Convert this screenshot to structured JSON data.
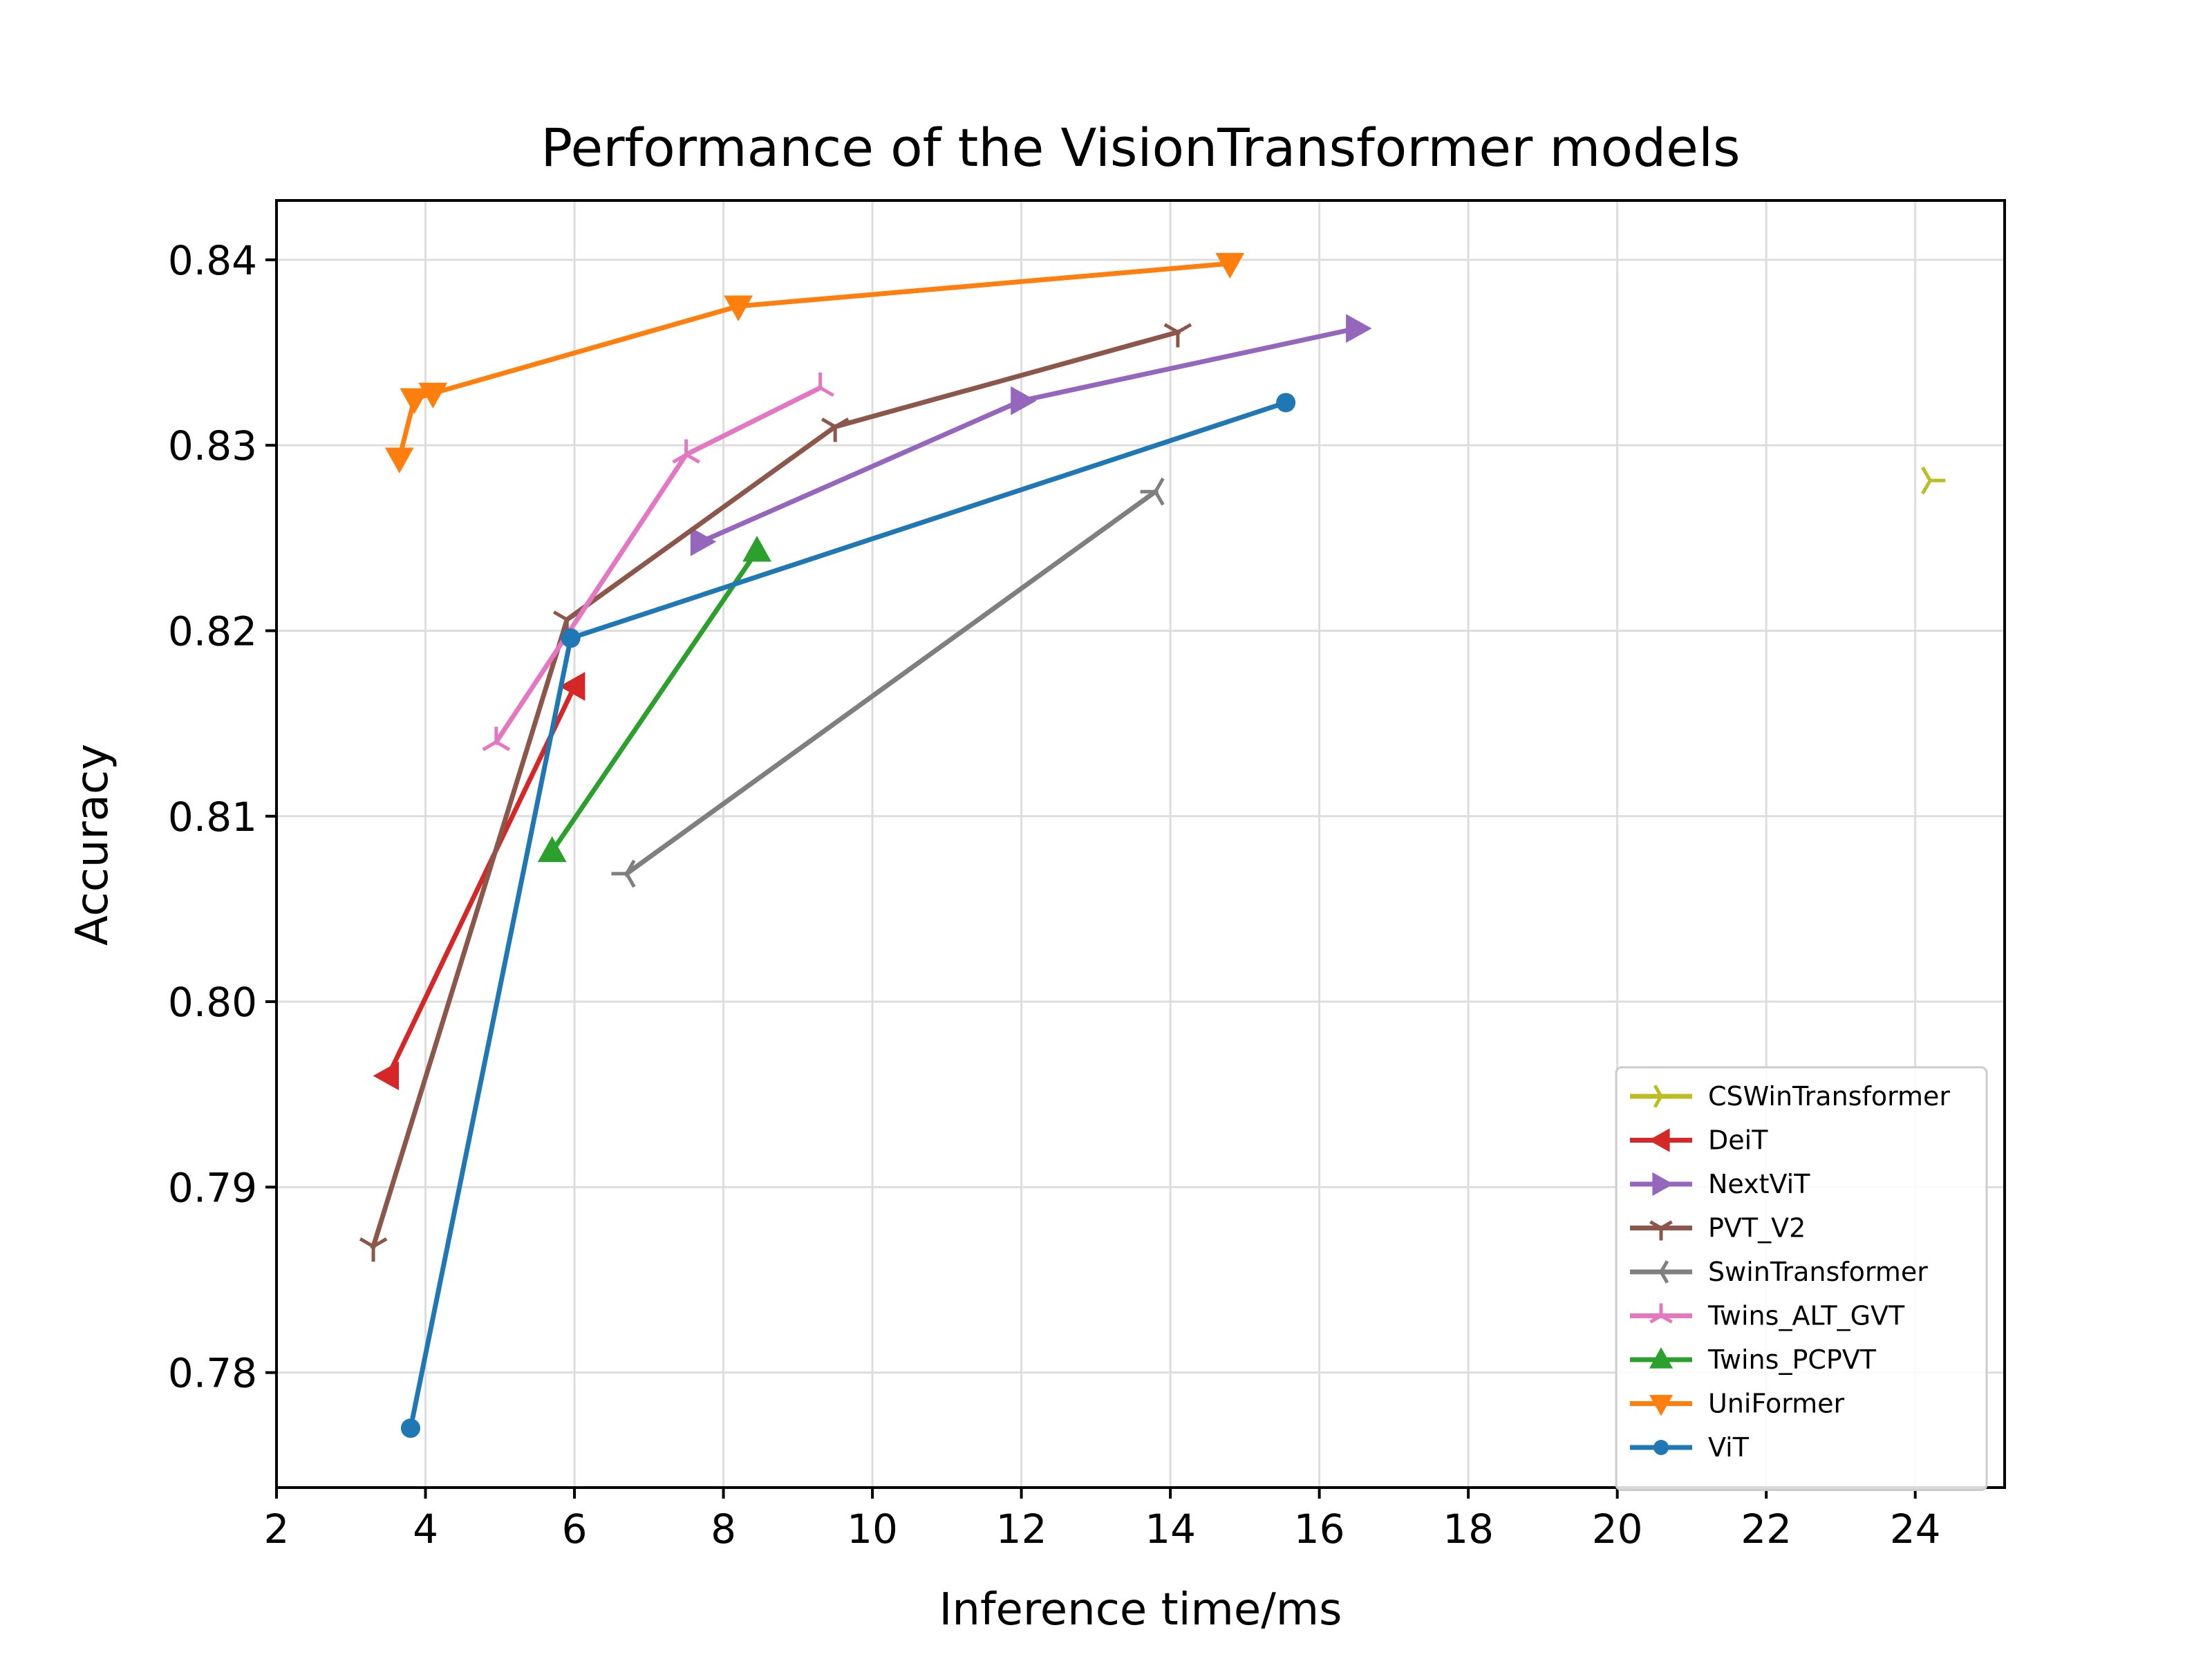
{
  "chart_data": {
    "type": "line",
    "title": "Performance of the VisionTransformer models",
    "xlabel": "Inference time/ms",
    "ylabel": "Accuracy",
    "xlim": [
      2,
      25.2
    ],
    "ylim": [
      0.7738,
      0.8432
    ],
    "xticks": [
      2,
      4,
      6,
      8,
      10,
      12,
      14,
      16,
      18,
      20,
      22,
      24
    ],
    "yticks": [
      0.78,
      0.79,
      0.8,
      0.81,
      0.82,
      0.83,
      0.84
    ],
    "ytick_labels": [
      "0.78",
      "0.79",
      "0.80",
      "0.81",
      "0.82",
      "0.83",
      "0.84"
    ],
    "grid": true,
    "legend_position": "lower-right",
    "series": [
      {
        "name": "CSWinTransformer",
        "color": "#bcbd22",
        "marker": "tri_right",
        "points": [
          [
            24.2,
            0.8281
          ]
        ]
      },
      {
        "name": "DeiT",
        "color": "#d62728",
        "marker": "triangle_left",
        "points": [
          [
            3.5,
            0.796
          ],
          [
            6.0,
            0.817
          ]
        ]
      },
      {
        "name": "NextViT",
        "color": "#9467bd",
        "marker": "triangle_right",
        "points": [
          [
            7.7,
            0.8248
          ],
          [
            12.0,
            0.8324
          ],
          [
            16.5,
            0.8363
          ]
        ]
      },
      {
        "name": "PVT_V2",
        "color": "#8c564b",
        "marker": "tri_down",
        "points": [
          [
            3.3,
            0.7868
          ],
          [
            5.9,
            0.8206
          ],
          [
            9.5,
            0.831
          ],
          [
            14.1,
            0.8361
          ]
        ]
      },
      {
        "name": "SwinTransformer",
        "color": "#7f7f7f",
        "marker": "tri_left",
        "points": [
          [
            6.7,
            0.8069
          ],
          [
            13.8,
            0.8275
          ]
        ]
      },
      {
        "name": "Twins_ALT_GVT",
        "color": "#e377c2",
        "marker": "tri_up",
        "points": [
          [
            4.95,
            0.814
          ],
          [
            7.5,
            0.8295
          ],
          [
            9.3,
            0.8331
          ]
        ]
      },
      {
        "name": "Twins_PCPVT",
        "color": "#2ca02c",
        "marker": "triangle_up",
        "points": [
          [
            5.7,
            0.8081
          ],
          [
            8.45,
            0.8243
          ]
        ]
      },
      {
        "name": "UniFormer",
        "color": "#ff7f0e",
        "marker": "triangle_down",
        "points": [
          [
            3.65,
            0.8293
          ],
          [
            3.85,
            0.8325
          ],
          [
            4.1,
            0.8328
          ],
          [
            8.2,
            0.8375
          ],
          [
            14.8,
            0.8398
          ]
        ]
      },
      {
        "name": "ViT",
        "color": "#1f77b4",
        "marker": "circle",
        "points": [
          [
            3.8,
            0.777
          ],
          [
            5.95,
            0.8196
          ],
          [
            15.55,
            0.8323
          ]
        ]
      }
    ]
  }
}
